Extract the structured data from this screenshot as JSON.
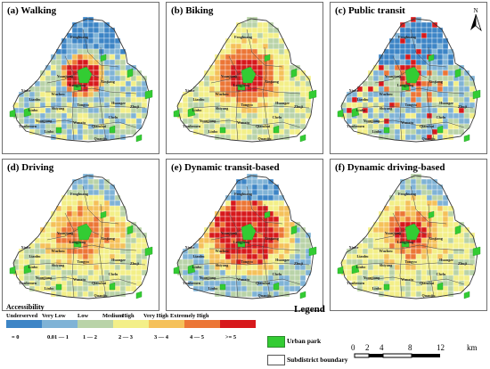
{
  "panels": [
    {
      "id": "walking",
      "title": "(a) Walking"
    },
    {
      "id": "biking",
      "title": "(b) Biking"
    },
    {
      "id": "public-transit",
      "title": "(c) Public transit"
    },
    {
      "id": "driving",
      "title": "(d) Driving"
    },
    {
      "id": "dynamic-transit",
      "title": "(e) Dynamic transit-based"
    },
    {
      "id": "dynamic-driving",
      "title": "(f) Dynamic driving-based"
    }
  ],
  "north_label": "N",
  "district_labels": [
    "Fenghuang",
    "Yuanjiang",
    "Longjiang",
    "Xinjiang",
    "Wuzhou",
    "Shiyang",
    "Tongyu",
    "Huangze",
    "Zhuji",
    "Lianhu",
    "Xinhe",
    "Linbo",
    "Tianhemen",
    "Chelu",
    "Qianshui",
    "Yuanjiang",
    "Linbo",
    "Wanxiu",
    "Quanjiu"
  ],
  "accessibility": {
    "title": "Accessibility",
    "classes": [
      {
        "label": "Underserved",
        "range": "= 0",
        "color": "#3d85c6"
      },
      {
        "label": "Very Low",
        "range": "0.01 — 1",
        "color": "#7fb3d6"
      },
      {
        "label": "Low",
        "range": "1 — 2",
        "color": "#b9d3a8"
      },
      {
        "label": "Medium",
        "range": "2 — 3",
        "color": "#f3ef88"
      },
      {
        "label": "High",
        "range": "3 — 4",
        "color": "#f5c15a"
      },
      {
        "label": "Very High",
        "range": "4 — 5",
        "color": "#ec7636"
      },
      {
        "label": "Extremely High",
        "range": ">= 5",
        "color": "#d7191c"
      }
    ]
  },
  "legend": {
    "title": "Legend",
    "urban_park": "Urban park",
    "subdistrict_boundary": "Subdistrict boundary",
    "park_color": "#33cc33"
  },
  "scale": {
    "ticks": [
      "0",
      "2",
      "4",
      "8",
      "12"
    ],
    "unit": "km"
  }
}
